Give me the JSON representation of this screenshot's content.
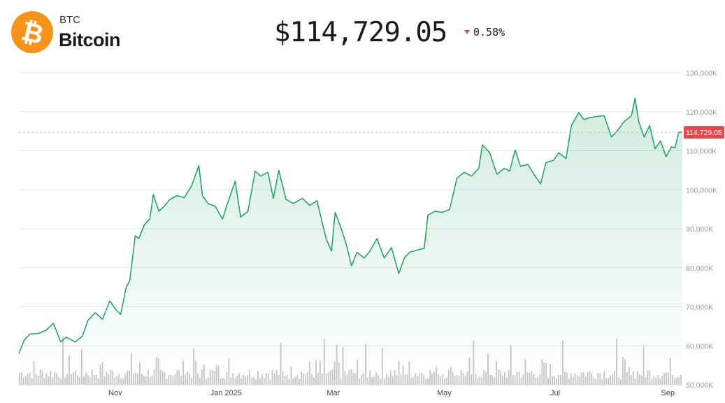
{
  "asset": {
    "symbol": "BTC",
    "name": "Bitcoin",
    "price": "$114,729.05",
    "change": "0.58%",
    "change_direction": "down",
    "logo_icon": "bitcoin-icon",
    "logo_glyph": "₿",
    "colors": {
      "brand": "#f7931a",
      "line": "#1e9e63",
      "down": "#e0484f",
      "volume": "#c4c4c4"
    }
  },
  "chart_data": {
    "type": "line",
    "x_range": [
      "2024-09-09",
      "2025-09-09"
    ],
    "ylim": [
      50000,
      130000
    ],
    "yticks": [
      {
        "value": 50000,
        "label": "50,000K"
      },
      {
        "value": 60000,
        "label": "60,000K"
      },
      {
        "value": 70000,
        "label": "70,000K"
      },
      {
        "value": 80000,
        "label": "80,000K"
      },
      {
        "value": 90000,
        "label": "90,000K"
      },
      {
        "value": 100000,
        "label": "100,000K"
      },
      {
        "value": 110000,
        "label": "110,000K"
      },
      {
        "value": 120000,
        "label": "120,000K"
      },
      {
        "value": 130000,
        "label": "130,000K"
      }
    ],
    "xticks": [
      {
        "date": "2024-11-01",
        "label": "Nov"
      },
      {
        "date": "2025-01-01",
        "label": "Jan 2025"
      },
      {
        "date": "2025-03-01",
        "label": "Mar"
      },
      {
        "date": "2025-05-01",
        "label": "May"
      },
      {
        "date": "2025-07-01",
        "label": "Jul"
      },
      {
        "date": "2025-09-01",
        "label": "Sep"
      }
    ],
    "current_price": 114729.05,
    "current_price_label": "114,729.05",
    "grid": true,
    "series": [
      {
        "points": [
          [
            "2024-09-09",
            58000
          ],
          [
            "2024-09-12",
            61500
          ],
          [
            "2024-09-15",
            63000
          ],
          [
            "2024-09-20",
            63200
          ],
          [
            "2024-09-24",
            64000
          ],
          [
            "2024-09-28",
            65800
          ],
          [
            "2024-10-02",
            61000
          ],
          [
            "2024-10-05",
            62200
          ],
          [
            "2024-10-10",
            61000
          ],
          [
            "2024-10-14",
            62500
          ],
          [
            "2024-10-17",
            66500
          ],
          [
            "2024-10-21",
            68500
          ],
          [
            "2024-10-25",
            66800
          ],
          [
            "2024-10-29",
            71500
          ],
          [
            "2024-11-01",
            69500
          ],
          [
            "2024-11-04",
            68000
          ],
          [
            "2024-11-07",
            75000
          ],
          [
            "2024-11-09",
            76700
          ],
          [
            "2024-11-12",
            88200
          ],
          [
            "2024-11-14",
            87500
          ],
          [
            "2024-11-17",
            91000
          ],
          [
            "2024-11-20",
            92500
          ],
          [
            "2024-11-22",
            98800
          ],
          [
            "2024-11-25",
            94500
          ],
          [
            "2024-11-28",
            95800
          ],
          [
            "2024-12-01",
            97500
          ],
          [
            "2024-12-05",
            98500
          ],
          [
            "2024-12-09",
            98000
          ],
          [
            "2024-12-13",
            101000
          ],
          [
            "2024-12-17",
            106200
          ],
          [
            "2024-12-19",
            98500
          ],
          [
            "2024-12-22",
            96500
          ],
          [
            "2024-12-26",
            95800
          ],
          [
            "2024-12-30",
            92500
          ],
          [
            "2025-01-02",
            96800
          ],
          [
            "2025-01-06",
            102200
          ],
          [
            "2025-01-09",
            93000
          ],
          [
            "2025-01-13",
            94500
          ],
          [
            "2025-01-17",
            104800
          ],
          [
            "2025-01-20",
            103500
          ],
          [
            "2025-01-24",
            104500
          ],
          [
            "2025-01-27",
            97800
          ],
          [
            "2025-01-30",
            105000
          ],
          [
            "2025-02-03",
            97500
          ],
          [
            "2025-02-07",
            96500
          ],
          [
            "2025-02-12",
            97800
          ],
          [
            "2025-02-16",
            96000
          ],
          [
            "2025-02-20",
            97200
          ],
          [
            "2025-02-25",
            87500
          ],
          [
            "2025-02-28",
            84300
          ],
          [
            "2025-03-02",
            94200
          ],
          [
            "2025-03-05",
            90500
          ],
          [
            "2025-03-08",
            86200
          ],
          [
            "2025-03-11",
            80500
          ],
          [
            "2025-03-14",
            84000
          ],
          [
            "2025-03-18",
            82500
          ],
          [
            "2025-03-21",
            84200
          ],
          [
            "2025-03-25",
            87500
          ],
          [
            "2025-03-29",
            82500
          ],
          [
            "2025-04-02",
            85200
          ],
          [
            "2025-04-06",
            78500
          ],
          [
            "2025-04-09",
            82500
          ],
          [
            "2025-04-12",
            84000
          ],
          [
            "2025-04-16",
            84500
          ],
          [
            "2025-04-20",
            85000
          ],
          [
            "2025-04-22",
            93500
          ],
          [
            "2025-04-26",
            94500
          ],
          [
            "2025-04-30",
            94200
          ],
          [
            "2025-05-04",
            95000
          ],
          [
            "2025-05-08",
            103000
          ],
          [
            "2025-05-12",
            104500
          ],
          [
            "2025-05-16",
            103500
          ],
          [
            "2025-05-20",
            105500
          ],
          [
            "2025-05-22",
            111500
          ],
          [
            "2025-05-26",
            109500
          ],
          [
            "2025-05-30",
            104000
          ],
          [
            "2025-06-03",
            105500
          ],
          [
            "2025-06-06",
            104800
          ],
          [
            "2025-06-09",
            110200
          ],
          [
            "2025-06-12",
            106000
          ],
          [
            "2025-06-16",
            106500
          ],
          [
            "2025-06-20",
            103500
          ],
          [
            "2025-06-23",
            101500
          ],
          [
            "2025-06-26",
            107000
          ],
          [
            "2025-06-30",
            107500
          ],
          [
            "2025-07-03",
            109500
          ],
          [
            "2025-07-07",
            108000
          ],
          [
            "2025-07-10",
            116500
          ],
          [
            "2025-07-14",
            119800
          ],
          [
            "2025-07-17",
            118000
          ],
          [
            "2025-07-20",
            118500
          ],
          [
            "2025-07-24",
            118800
          ],
          [
            "2025-07-28",
            119000
          ],
          [
            "2025-08-01",
            113500
          ],
          [
            "2025-08-04",
            115000
          ],
          [
            "2025-08-08",
            117500
          ],
          [
            "2025-08-12",
            119000
          ],
          [
            "2025-08-14",
            123500
          ],
          [
            "2025-08-16",
            117500
          ],
          [
            "2025-08-19",
            113500
          ],
          [
            "2025-08-22",
            116500
          ],
          [
            "2025-08-25",
            110500
          ],
          [
            "2025-08-28",
            112500
          ],
          [
            "2025-08-31",
            108500
          ],
          [
            "2025-09-03",
            111000
          ],
          [
            "2025-09-05",
            110800
          ],
          [
            "2025-09-07",
            114800
          ],
          [
            "2025-09-09",
            114729
          ]
        ]
      }
    ]
  }
}
